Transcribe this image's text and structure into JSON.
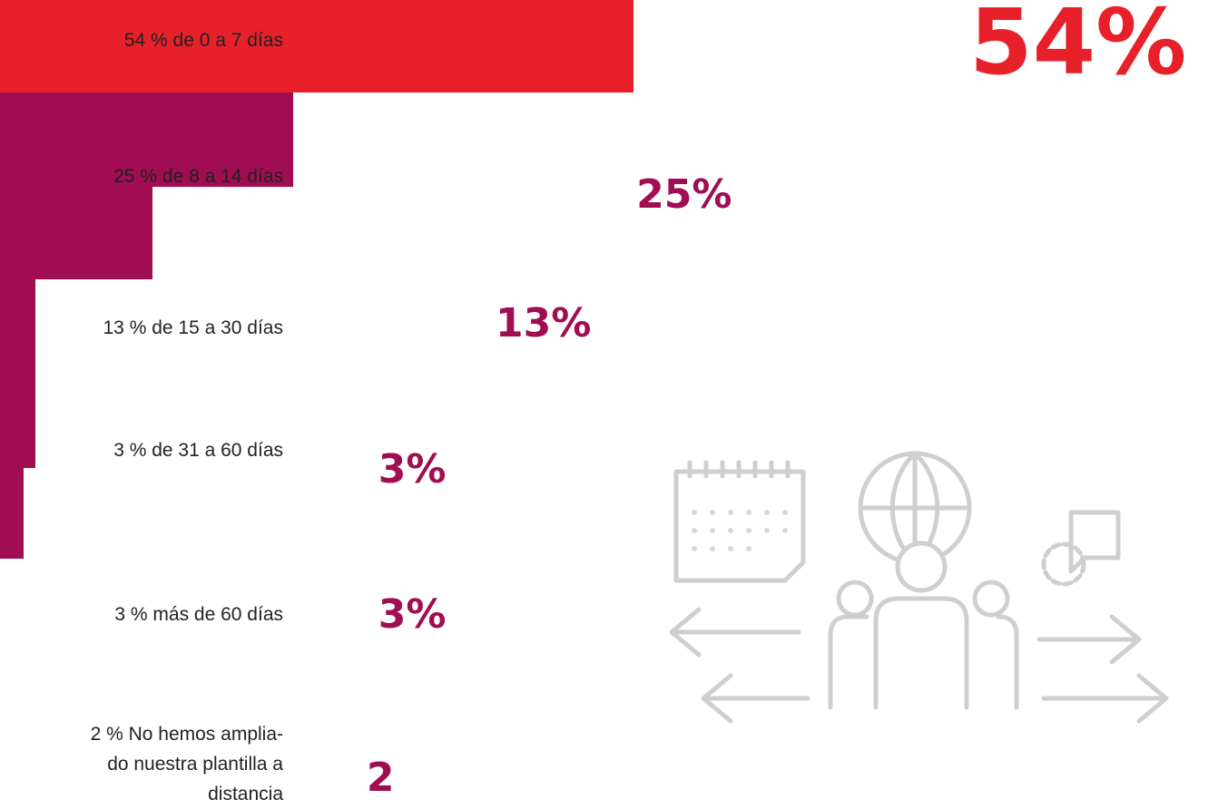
{
  "chart_data": {
    "type": "bar",
    "orientation": "horizontal",
    "categories": [
      "54 % de 0 a 7 días",
      "25 % de 8 a 14 días",
      "13 % de 15 a 30 días",
      "3 % de 31 a 60 días",
      "3 % más de 60 días",
      "2 % No hemos amplia-\ndo nuestra plantilla a\ndistancia"
    ],
    "values": [
      54,
      25,
      13,
      3,
      3,
      2
    ],
    "value_labels": [
      "54%",
      "25%",
      "13%",
      "3%",
      "3%",
      "2"
    ],
    "colors": [
      "#e8202a",
      "#a00d52",
      "#a00d52",
      "#a00d52",
      "#a00d52",
      "#a00d52"
    ]
  }
}
